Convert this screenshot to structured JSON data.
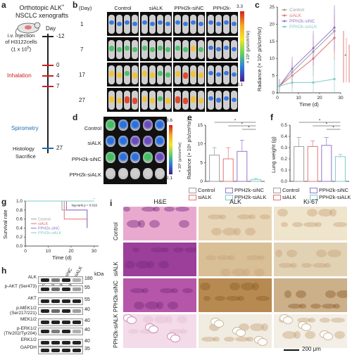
{
  "panels": {
    "a": {
      "label": "a",
      "title_line1": "Orthotopic ALK",
      "title_sup": "+",
      "title_line2": "NSCLC xenografts",
      "day_header": "Day",
      "injection": [
        "i.v. injection",
        "of H3122cells",
        "(1 x 10",
        "6",
        ")"
      ],
      "days": [
        "-12",
        "0",
        "4",
        "7",
        "27"
      ],
      "inhalation": "Inhalation",
      "spirometry": "Spirometry",
      "histology": "Histology",
      "sacrifice": "Sacrifice"
    },
    "b": {
      "label": "b",
      "day_header": "(Day)",
      "groups": [
        "Control",
        "siALK",
        "PPH2k-siNC",
        "PPH2k-siALK"
      ],
      "days": [
        "1",
        "7",
        "17",
        "27"
      ],
      "scale_max": "3.3",
      "scale_min": "0.1",
      "scale_unit": "× 10⁶ (p/s/cm²/sr)"
    },
    "c": {
      "label": "c",
      "xlabel": "Time (d)",
      "ylabel": "Radiance (× 10⁶ p/s/cm²/sr)",
      "legend": [
        "Control",
        "siALK",
        "PPH2k-siNC",
        "PPH2k-siALK"
      ],
      "xticks": [
        "0",
        "10",
        "20",
        "30"
      ],
      "yticks": [
        "0",
        "5",
        "10",
        "15",
        "20",
        "25"
      ],
      "sig": "*"
    },
    "d": {
      "label": "d",
      "groups": [
        "Control",
        "siALK",
        "PPH2k-siNC",
        "PPH2k-siALK"
      ],
      "scale_max": "3.6",
      "scale_min": "2.1",
      "scale_unit": "× 10⁶ (p/s/cm²/sr)"
    },
    "e": {
      "label": "e",
      "ylabel": "Radiance (× 10⁶ p/s/cm²/sr)",
      "yticks": [
        "0",
        "5",
        "10",
        "15"
      ],
      "legend": [
        "Control",
        "siALK",
        "PPH2k-siNC",
        "PPH2k-siALK"
      ],
      "sig": "*"
    },
    "f": {
      "label": "f",
      "ylabel": "Lung weight (g)",
      "yticks": [
        "0.0",
        "0.1",
        "0.2",
        "0.3",
        "0.4",
        "0.5"
      ],
      "legend": [
        "Control",
        "siALK",
        "PPH2k-siNC",
        "PPH2k-siALK"
      ],
      "sig": "*"
    },
    "g": {
      "label": "g",
      "ylabel": "Survival rate",
      "xlabel": "Time (d)",
      "yticks": [
        "0.0",
        "0.2",
        "0.4",
        "0.6",
        "0.8",
        "1.0"
      ],
      "xticks": [
        "0",
        "10",
        "20",
        "30"
      ],
      "legend": [
        "Control",
        "siALK",
        "PPH2k-siNC",
        "PPH2k-siALK"
      ],
      "stat": "log-rank p = 0.016",
      "sig": "*"
    },
    "h": {
      "label": "h",
      "lanes": [
        "Control",
        "siALK",
        "PPH2k-siNC",
        "PPH2k-siALK"
      ],
      "kda": "kDa",
      "bands": [
        {
          "name": "ALK",
          "kda": "180"
        },
        {
          "name": "p-AKT",
          "name2": "(Ser473)",
          "kda": "55"
        },
        {
          "name": "AKT",
          "kda": "55"
        },
        {
          "name": "p-MEK1/2",
          "name2": "(Ser217/221)",
          "kda": "40"
        },
        {
          "name": "MEK1/2",
          "kda": "40"
        },
        {
          "name": "p-ERK1/2",
          "name2": "(Thr202/Tyr204)",
          "kda": "40"
        },
        {
          "name": "ERK1/2",
          "kda": "40"
        },
        {
          "name": "GAPDH",
          "kda": "35"
        }
      ]
    },
    "i": {
      "label": "i",
      "columns": [
        "H&E",
        "ALK",
        "Ki-67"
      ],
      "rows": [
        "Control",
        "siALK",
        "PPH2k-siNC",
        "PPH2k-siALK"
      ],
      "scalebar": "200 μm"
    }
  },
  "colors": {
    "control": "#9e9e9e",
    "siALK": "#e57373",
    "siNC": "#9575cd",
    "siALKpph": "#80cbc4",
    "red": "#cc1f1f",
    "blue": "#1f6fb5",
    "he": "#c95aa8",
    "ihc": "#b98a4e"
  },
  "chart_data": [
    {
      "type": "line",
      "panel": "c",
      "xlabel": "Time (d)",
      "ylabel": "Radiance (× 10⁶ p/s/cm²/sr)",
      "x": [
        1,
        7,
        17,
        27
      ],
      "xlim": [
        0,
        30
      ],
      "ylim": [
        0,
        25
      ],
      "series": [
        {
          "name": "Control",
          "values": [
            2,
            6,
            12,
            18
          ]
        },
        {
          "name": "siALK",
          "values": [
            2,
            5,
            10,
            16
          ]
        },
        {
          "name": "PPH2k-siNC",
          "values": [
            2,
            7,
            13,
            19
          ]
        },
        {
          "name": "PPH2k-siALK",
          "values": [
            2,
            3,
            3,
            4
          ]
        }
      ]
    },
    {
      "type": "bar",
      "panel": "e",
      "ylabel": "Radiance (× 10⁶ p/s/cm²/sr)",
      "categories": [
        "Control",
        "siALK",
        "PPH2k-siNC",
        "PPH2k-siALK"
      ],
      "values": [
        7,
        6,
        8,
        0.5
      ],
      "errors": [
        2,
        3,
        3,
        0.3
      ],
      "ylim": [
        0,
        15
      ]
    },
    {
      "type": "bar",
      "panel": "f",
      "ylabel": "Lung weight (g)",
      "categories": [
        "Control",
        "siALK",
        "PPH2k-siNC",
        "PPH2k-siALK"
      ],
      "values": [
        0.31,
        0.31,
        0.32,
        0.22
      ],
      "errors": [
        0.08,
        0.05,
        0.07,
        0.02
      ],
      "ylim": [
        0,
        0.5
      ]
    },
    {
      "type": "line",
      "panel": "g",
      "ylabel": "Survival rate",
      "xlabel": "Time (d)",
      "xlim": [
        0,
        32
      ],
      "ylim": [
        0,
        1
      ],
      "series": [
        {
          "name": "Control",
          "steps": [
            [
              0,
              1.0
            ],
            [
              16,
              1.0
            ],
            [
              16,
              0.8
            ],
            [
              27,
              0.8
            ],
            [
              27,
              0.6
            ]
          ]
        },
        {
          "name": "siALK",
          "steps": [
            [
              0,
              1.0
            ],
            [
              17,
              1.0
            ],
            [
              17,
              0.6
            ],
            [
              27,
              0.6
            ],
            [
              27,
              0.4
            ]
          ]
        },
        {
          "name": "PPH2k-siNC",
          "steps": [
            [
              0,
              1.0
            ],
            [
              18,
              1.0
            ],
            [
              18,
              0.8
            ],
            [
              27,
              0.8
            ],
            [
              27,
              0.4
            ]
          ]
        },
        {
          "name": "PPH2k-siALK",
          "steps": [
            [
              0,
              1.0
            ],
            [
              30,
              1.0
            ]
          ]
        }
      ]
    }
  ]
}
